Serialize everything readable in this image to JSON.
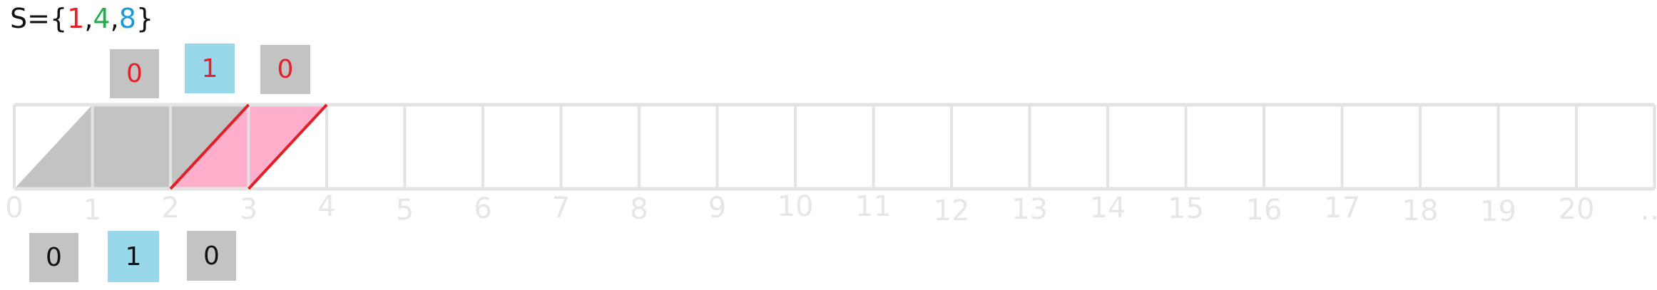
{
  "set": {
    "prefix": "S={",
    "suffix": "}",
    "separator": ",",
    "elements": [
      {
        "value": "1",
        "color": "#e2202a"
      },
      {
        "value": "4",
        "color": "#1fae4a"
      },
      {
        "value": "8",
        "color": "#1a9ad6"
      }
    ]
  },
  "colors": {
    "grid": "#e3e3e3",
    "gray_fill": "#c3c3c3",
    "pink_fill": "#ffaecb",
    "red_line": "#e01f26",
    "tick_label": "#e6e6e6",
    "badge_gray": "#c3c3c3",
    "badge_blue": "#99d8ea",
    "badge_red_text": "#e2202a",
    "badge_black_text": "#111111"
  },
  "tape": {
    "tick_labels": [
      "0",
      "1",
      "2",
      "3",
      "4",
      "5",
      "6",
      "7",
      "8",
      "9",
      "10",
      "11",
      "12",
      "13",
      "14",
      "15",
      "16",
      "17",
      "18",
      "19",
      "20",
      "…"
    ],
    "cells": [
      {
        "index": 0,
        "fill": "gray",
        "shape": "triangle"
      },
      {
        "index": 1,
        "fill": "gray",
        "shape": "square"
      },
      {
        "index": 2,
        "fill": "gray+pink",
        "shape": "split"
      },
      {
        "index": 3,
        "fill": "pink",
        "shape": "parallelogram"
      }
    ]
  },
  "top_badges": [
    {
      "text": "0",
      "bg": "gray",
      "text_color": "red"
    },
    {
      "text": "1",
      "bg": "blue",
      "text_color": "red"
    },
    {
      "text": "0",
      "bg": "gray",
      "text_color": "red"
    }
  ],
  "bottom_badges": [
    {
      "text": "0",
      "bg": "gray",
      "text_color": "black"
    },
    {
      "text": "1",
      "bg": "blue",
      "text_color": "black"
    },
    {
      "text": "0",
      "bg": "gray",
      "text_color": "black"
    }
  ]
}
